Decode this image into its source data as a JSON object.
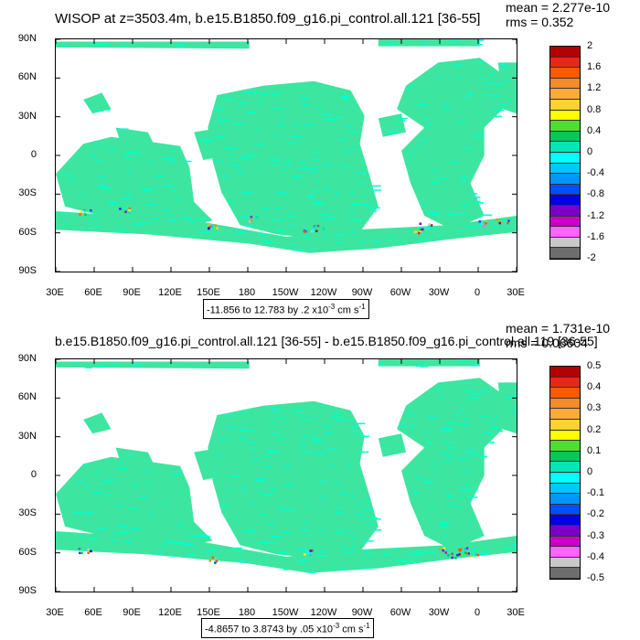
{
  "top": {
    "title": "WISOP at z=3503.4m, b.e15.B1850.f09_g16.pi_control.all.121 [36-55]",
    "mean": "mean = 2.277e-10",
    "rms": "rms = 0.352",
    "range_prefix": "-11.856 to 12.783 by .2 x10",
    "range_exp": "-3",
    "range_unit": " cm s",
    "range_unit_exp": "-1",
    "colorbar_labels": [
      "2",
      "1.6",
      "1.2",
      "0.8",
      "0.4",
      "0",
      "-0.4",
      "-0.8",
      "-1.2",
      "-1.6",
      "-2"
    ]
  },
  "bottom": {
    "title": "b.e15.B1850.f09_g16.pi_control.all.121 [36-55] - b.e15.B1850.f09_g16.pi_control.all.119 [36-55]",
    "mean": "mean = 1.731e-10",
    "rms": "rms = 0.06604",
    "range_prefix": "-4.8657 to 3.8743 by .05 x10",
    "range_exp": "-3",
    "range_unit": " cm s",
    "range_unit_exp": "-1",
    "colorbar_labels": [
      "0.5",
      "0.4",
      "0.3",
      "0.2",
      "0.1",
      "0",
      "-0.1",
      "-0.2",
      "-0.3",
      "-0.4",
      "-0.5"
    ]
  },
  "axes": {
    "lat_labels": [
      "90N",
      "60N",
      "30N",
      "0",
      "30S",
      "60S",
      "90S"
    ],
    "lon_labels": [
      "30E",
      "60E",
      "90E",
      "120E",
      "150E",
      "180",
      "150W",
      "120W",
      "90W",
      "60W",
      "30W",
      "0",
      "30E"
    ]
  },
  "colors": {
    "colorbar": [
      "#b40000",
      "#e62814",
      "#ff5a00",
      "#f58c28",
      "#ffaa3c",
      "#fad232",
      "#ffff00",
      "#50dc32",
      "#00c85a",
      "#00e6b4",
      "#00ffff",
      "#00c8ff",
      "#0096ff",
      "#0050ff",
      "#0000e6",
      "#7800c8",
      "#c800c8",
      "#ff64ff",
      "#c8c8c8",
      "#6e6e6e"
    ],
    "ocean_main": "#3ce6a0",
    "ocean_alt": "#00ffd2"
  }
}
